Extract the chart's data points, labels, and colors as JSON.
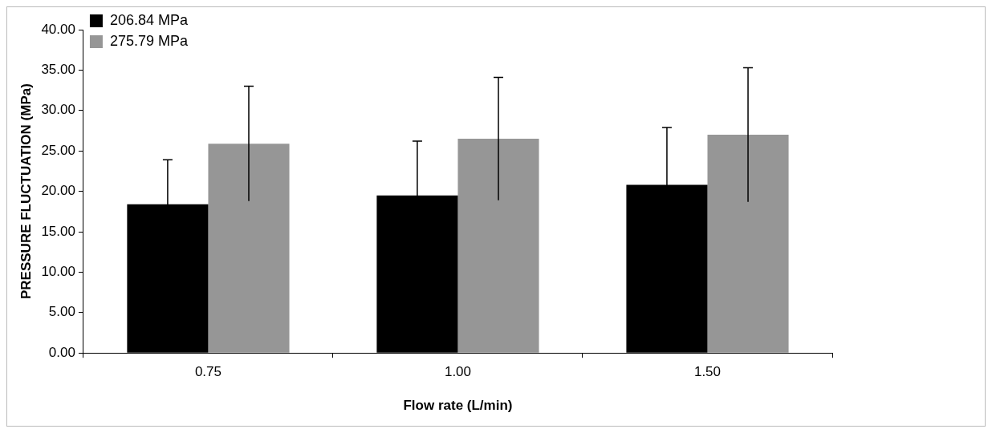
{
  "chart_data": {
    "type": "bar",
    "xlabel": "Flow rate (L/min)",
    "ylabel": "PRESSURE FLUCTUATION (MPa)",
    "categories": [
      "0.75",
      "1.00",
      "1.50"
    ],
    "series": [
      {
        "name": "206.84 MPa",
        "color": "#000000",
        "values": [
          18.4,
          19.5,
          20.8
        ],
        "errors": [
          5.5,
          6.7,
          7.1
        ]
      },
      {
        "name": "275.79 MPa",
        "color": "#969696",
        "values": [
          25.9,
          26.5,
          27.0
        ],
        "errors": [
          7.1,
          7.6,
          8.3
        ]
      }
    ],
    "ylim": [
      0,
      40
    ],
    "yticks": [
      {
        "value": 0,
        "label": "0.00"
      },
      {
        "value": 5,
        "label": "5.00"
      },
      {
        "value": 10,
        "label": "10.00"
      },
      {
        "value": 15,
        "label": "15.00"
      },
      {
        "value": 20,
        "label": "20.00"
      },
      {
        "value": 25,
        "label": "25.00"
      },
      {
        "value": 30,
        "label": "30.00"
      },
      {
        "value": 35,
        "label": "35.00"
      },
      {
        "value": 40,
        "label": "40.00"
      }
    ],
    "grid": false,
    "legend": "top left"
  }
}
